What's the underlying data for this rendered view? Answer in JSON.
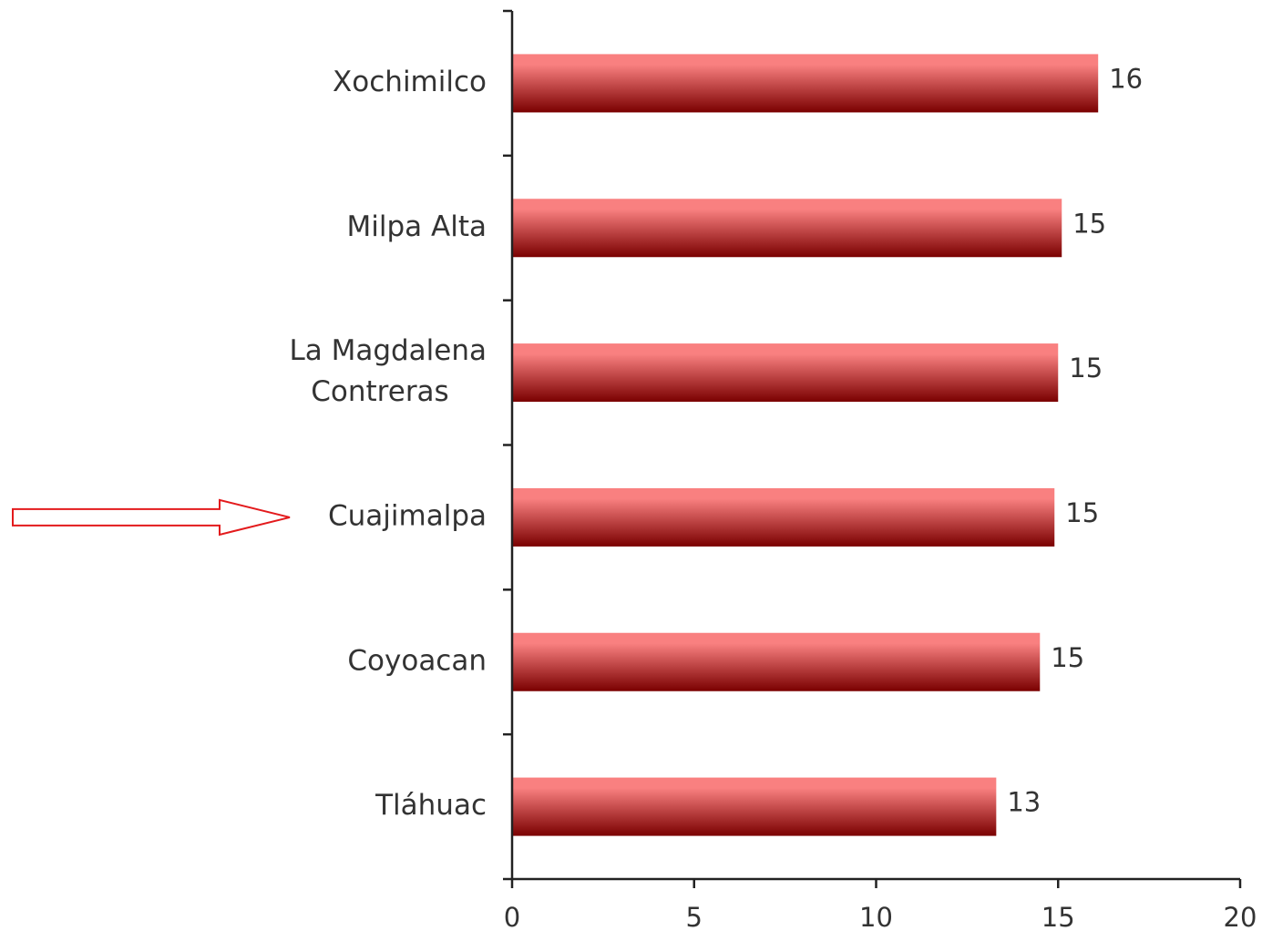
{
  "chart_data": {
    "type": "bar",
    "orientation": "horizontal",
    "categories": [
      [
        "Xochimilco"
      ],
      [
        "Milpa Alta"
      ],
      [
        "La Magdalena",
        "Contreras"
      ],
      [
        "Cuajimalpa"
      ],
      [
        "Coyoacan"
      ],
      [
        "Tláhuac"
      ]
    ],
    "values": [
      16.1,
      15.1,
      15.0,
      14.9,
      14.5,
      13.3
    ],
    "data_labels": [
      "16",
      "15",
      "15",
      "15",
      "15",
      "13"
    ],
    "xlim": [
      0,
      20
    ],
    "xticks": [
      0,
      5,
      10,
      15,
      20
    ],
    "xtick_labels": [
      "0",
      "5",
      "10",
      "15",
      "20"
    ],
    "grid": false,
    "legend": "none",
    "colors": {
      "bar_top": "#f98080",
      "bar_bottom": "#7a0000",
      "axis": "#222222",
      "text": "#333333",
      "highlight_arrow": "#e31a1c"
    },
    "annotations": [
      {
        "type": "arrow",
        "points_to": "Cuajimalpa"
      }
    ]
  }
}
